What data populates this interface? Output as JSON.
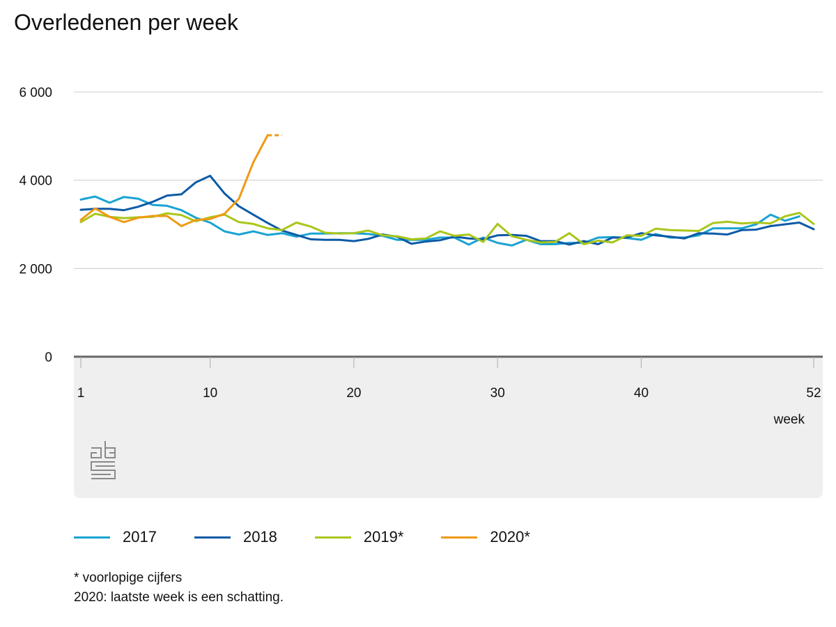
{
  "title": "Overledenen per week",
  "colors": {
    "2017": "#1aa3d2",
    "2018": "#0c5aa6",
    "2019": "#a9c61a",
    "2020": "#ee9a14",
    "grid": "#cccccc",
    "axis": "#666666",
    "panel": "#efefef"
  },
  "legend": [
    {
      "label": "2017",
      "color": "#1aa3d2"
    },
    {
      "label": "2018",
      "color": "#0c5aa6"
    },
    {
      "label": "2019*",
      "color": "#a9c61a"
    },
    {
      "label": "2020*",
      "color": "#ee9a14"
    }
  ],
  "notes": [
    "* voorlopige cijfers",
    "2020: laatste week is een schatting."
  ],
  "logo": "cbs-logo",
  "chart_data": {
    "type": "line",
    "title": "Overledenen per week",
    "xlabel": "week",
    "ylabel": "",
    "xlim": [
      1,
      52
    ],
    "ylim": [
      0,
      6000
    ],
    "x_ticks": [
      1,
      10,
      20,
      30,
      40,
      52
    ],
    "y_ticks": [
      0,
      2000,
      4000,
      6000
    ],
    "y_tick_labels": [
      "0",
      "2 000",
      "4 000",
      "6 000"
    ],
    "grid": true,
    "legend_position": "bottom",
    "series": [
      {
        "name": "2017",
        "color": "#1aa3d2",
        "x_start": 1,
        "values": [
          3560,
          3630,
          3490,
          3620,
          3580,
          3440,
          3420,
          3320,
          3150,
          3040,
          2840,
          2770,
          2840,
          2760,
          2800,
          2720,
          2790,
          2790,
          2800,
          2800,
          2780,
          2740,
          2650,
          2650,
          2650,
          2700,
          2700,
          2540,
          2700,
          2580,
          2520,
          2650,
          2550,
          2550,
          2580,
          2580,
          2700,
          2710,
          2690,
          2650,
          2780,
          2700,
          2700,
          2750,
          2910,
          2910,
          2910,
          3000,
          3220,
          3080,
          3180
        ]
      },
      {
        "name": "2018",
        "color": "#0c5aa6",
        "x_start": 1,
        "values": [
          3330,
          3350,
          3350,
          3320,
          3400,
          3510,
          3650,
          3680,
          3950,
          4100,
          3700,
          3410,
          3220,
          3030,
          2860,
          2760,
          2660,
          2650,
          2650,
          2620,
          2670,
          2770,
          2720,
          2560,
          2610,
          2640,
          2720,
          2680,
          2660,
          2750,
          2760,
          2740,
          2620,
          2620,
          2540,
          2620,
          2550,
          2700,
          2700,
          2800,
          2750,
          2720,
          2680,
          2800,
          2790,
          2770,
          2870,
          2880,
          2960,
          3000,
          3040,
          2890
        ]
      },
      {
        "name": "2019*",
        "color": "#a9c61a",
        "x_start": 1,
        "values": [
          3050,
          3240,
          3170,
          3140,
          3160,
          3170,
          3250,
          3210,
          3070,
          3160,
          3220,
          3050,
          3010,
          2910,
          2870,
          3040,
          2950,
          2810,
          2790,
          2800,
          2860,
          2750,
          2730,
          2660,
          2680,
          2840,
          2740,
          2770,
          2600,
          3010,
          2730,
          2650,
          2590,
          2600,
          2800,
          2550,
          2630,
          2590,
          2750,
          2740,
          2900,
          2870,
          2860,
          2850,
          3030,
          3060,
          3020,
          3040,
          3020,
          3180,
          3260,
          3010
        ]
      },
      {
        "name": "2020*",
        "color": "#ee9a14",
        "x_start": 1,
        "values": [
          3100,
          3360,
          3170,
          3050,
          3150,
          3190,
          3190,
          2960,
          3100,
          3120,
          3240,
          3580,
          4400,
          5020
        ],
        "estimate": {
          "x": [
            14,
            15
          ],
          "values": [
            5020,
            5020
          ]
        }
      }
    ]
  }
}
